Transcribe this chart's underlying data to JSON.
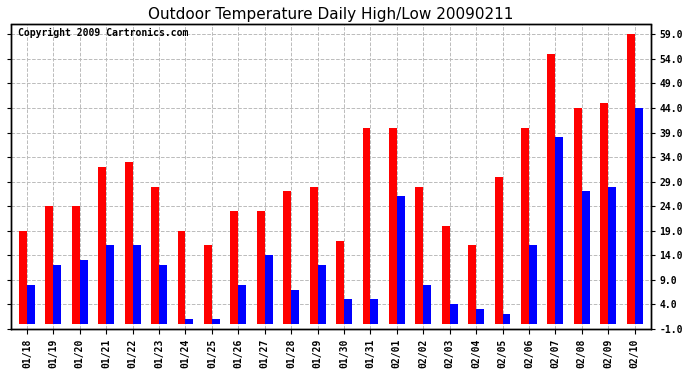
{
  "title": "Outdoor Temperature Daily High/Low 20090211",
  "copyright": "Copyright 2009 Cartronics.com",
  "dates": [
    "01/18",
    "01/19",
    "01/20",
    "01/21",
    "01/22",
    "01/23",
    "01/24",
    "01/25",
    "01/26",
    "01/27",
    "01/28",
    "01/29",
    "01/30",
    "01/31",
    "02/01",
    "02/02",
    "02/03",
    "02/04",
    "02/05",
    "02/06",
    "02/07",
    "02/08",
    "02/09",
    "02/10"
  ],
  "highs": [
    19,
    24,
    24,
    32,
    33,
    28,
    19,
    16,
    23,
    23,
    27,
    28,
    17,
    40,
    40,
    28,
    20,
    16,
    30,
    40,
    55,
    44,
    45,
    59
  ],
  "lows": [
    8,
    12,
    13,
    16,
    16,
    12,
    1,
    1,
    8,
    14,
    7,
    12,
    5,
    5,
    26,
    8,
    4,
    3,
    2,
    16,
    38,
    27,
    28,
    44
  ],
  "high_color": "#ff0000",
  "low_color": "#0000ff",
  "bg_color": "#ffffff",
  "grid_color": "#bbbbbb",
  "ylim": [
    -1,
    61
  ],
  "yticks": [
    -1,
    4,
    9,
    14,
    19,
    24,
    29,
    34,
    39,
    44,
    49,
    54,
    59
  ],
  "ytick_labels": [
    "-1.0",
    "4.0",
    "9.0",
    "14.0",
    "19.0",
    "24.0",
    "29.0",
    "34.0",
    "39.0",
    "44.0",
    "49.0",
    "54.0",
    "59.0"
  ],
  "title_fontsize": 11,
  "copyright_fontsize": 7,
  "bar_width": 0.3,
  "figsize": [
    6.9,
    3.75
  ],
  "dpi": 100
}
